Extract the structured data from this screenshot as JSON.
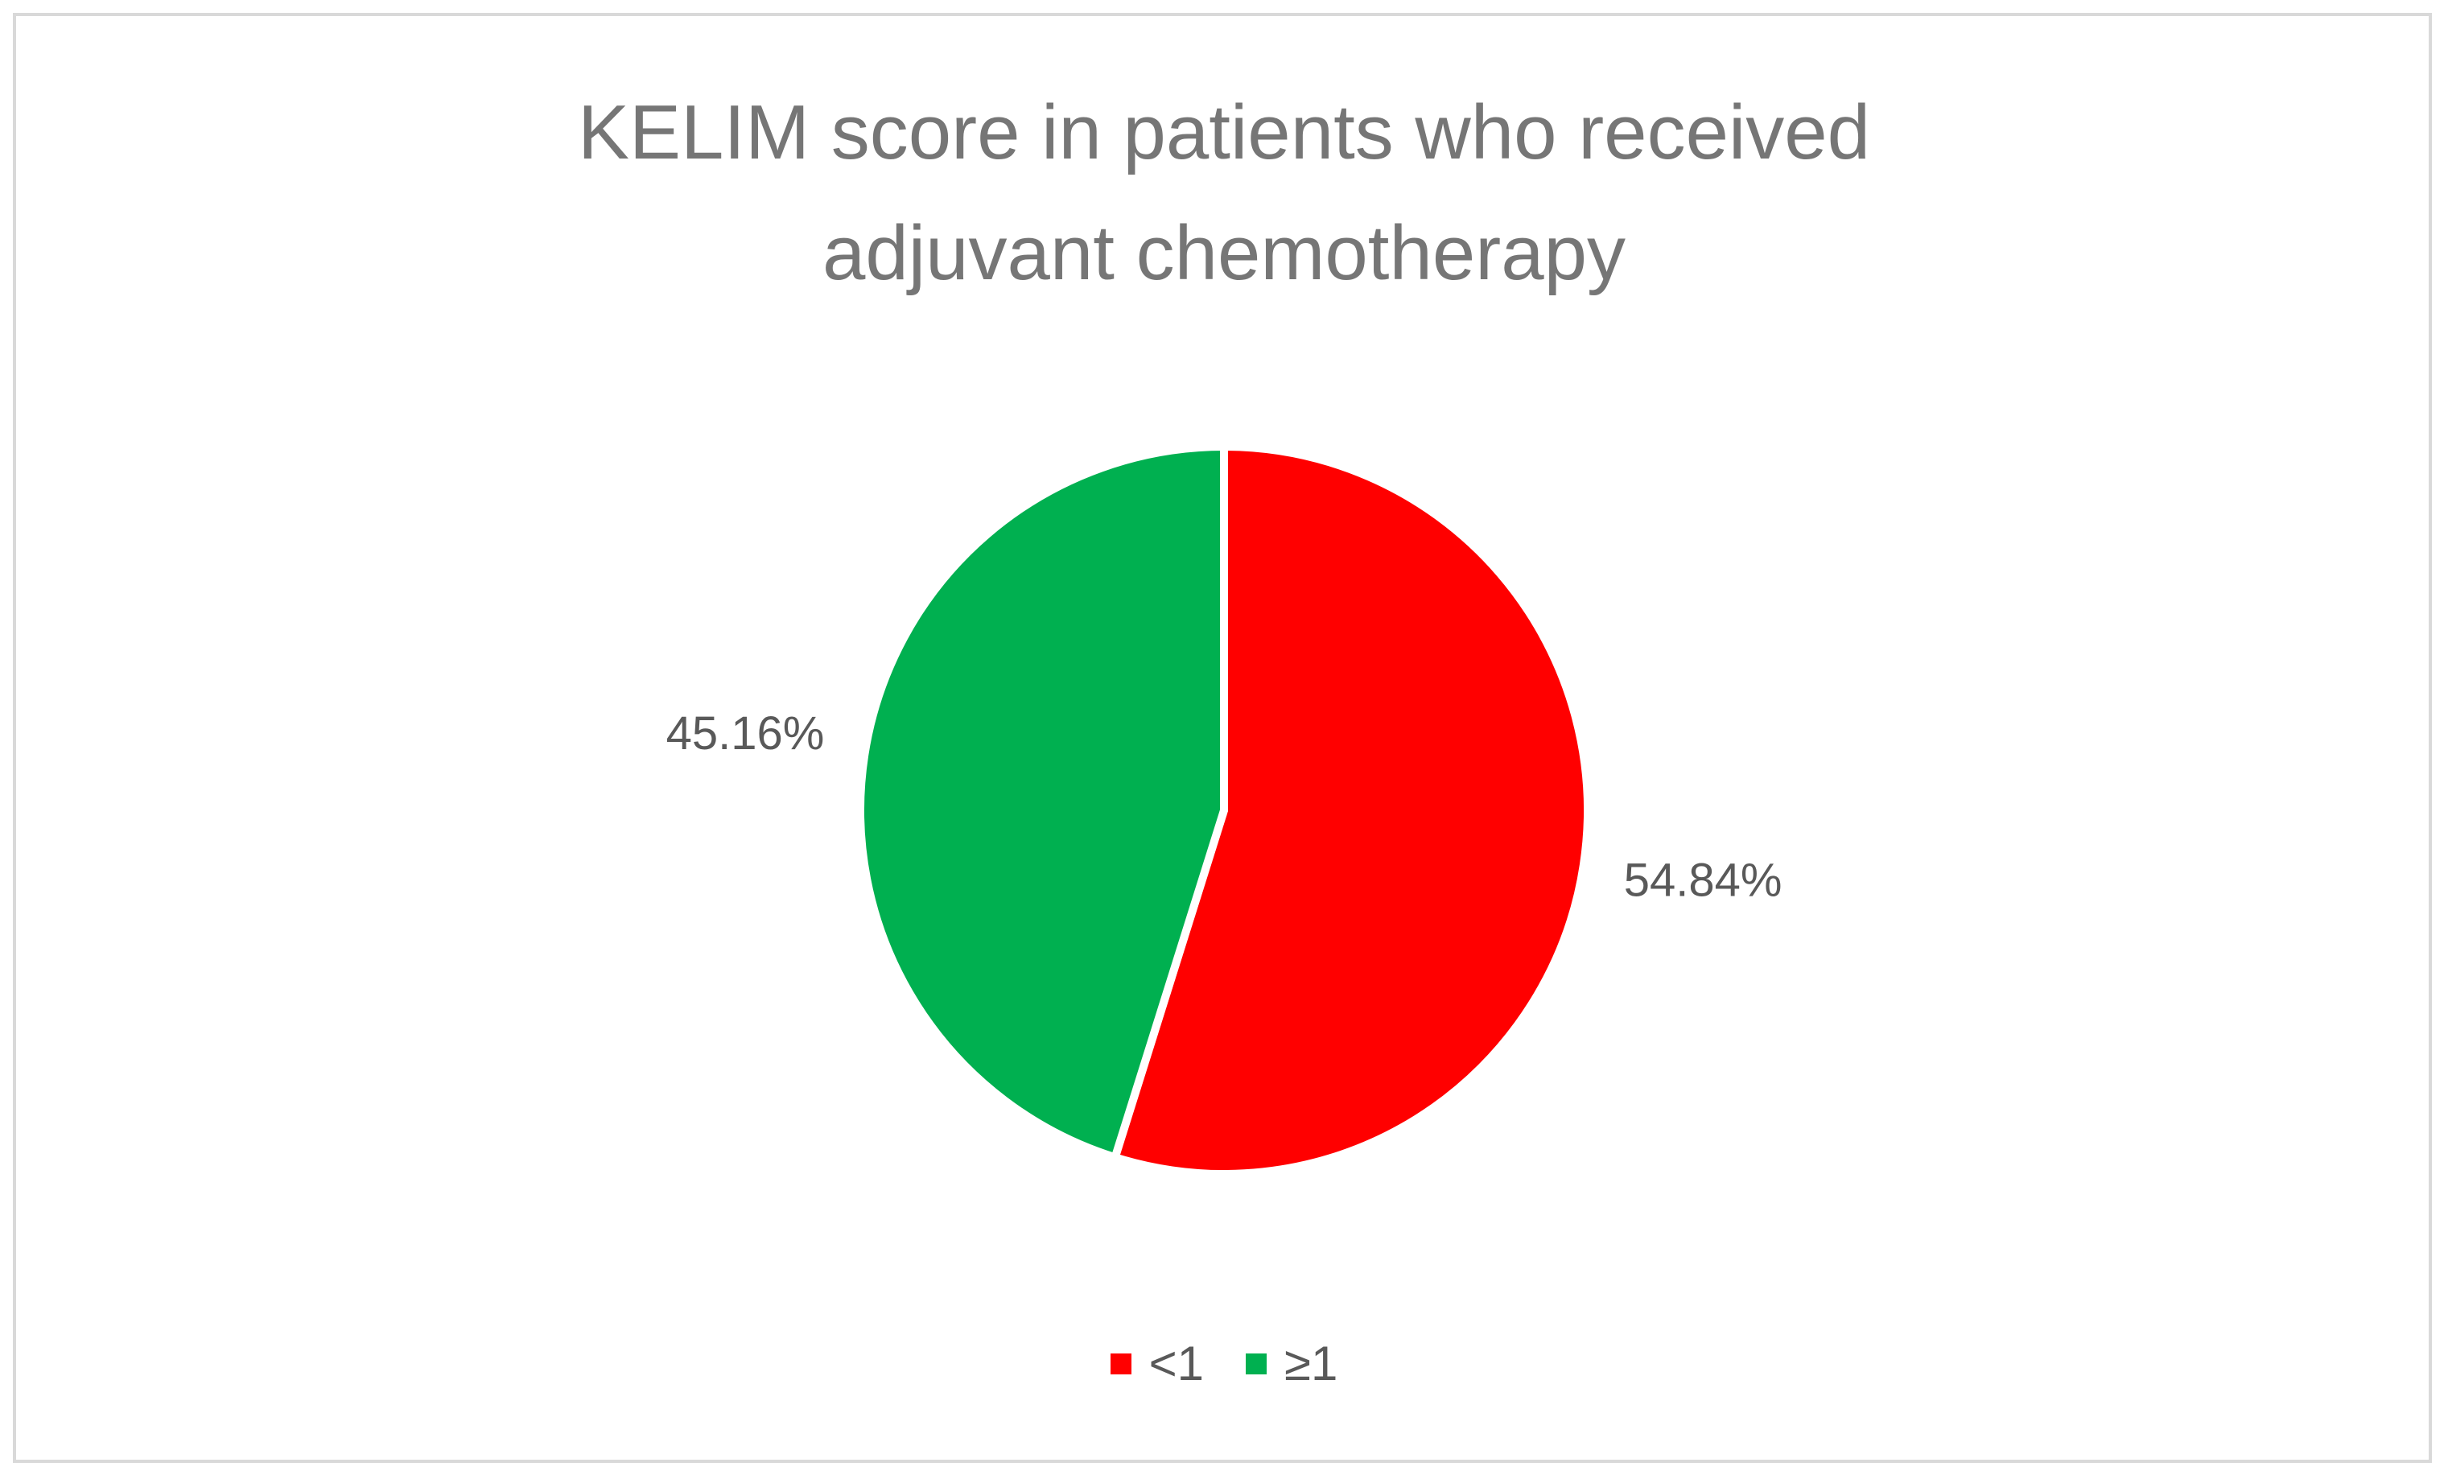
{
  "chart_data": {
    "type": "pie",
    "title": "KELIM score in patients who received adjuvant chemotherapy",
    "title_lines": [
      "KELIM score in patients who received",
      "adjuvant chemotherapy"
    ],
    "categories": [
      "<1",
      "≥1"
    ],
    "values": [
      54.84,
      45.16
    ],
    "data_labels": [
      "54.84%",
      "45.16%"
    ],
    "colors": [
      "#ff0000",
      "#00b050"
    ],
    "start_angle_deg": 0,
    "direction": "clockwise",
    "legend_position": "bottom"
  }
}
